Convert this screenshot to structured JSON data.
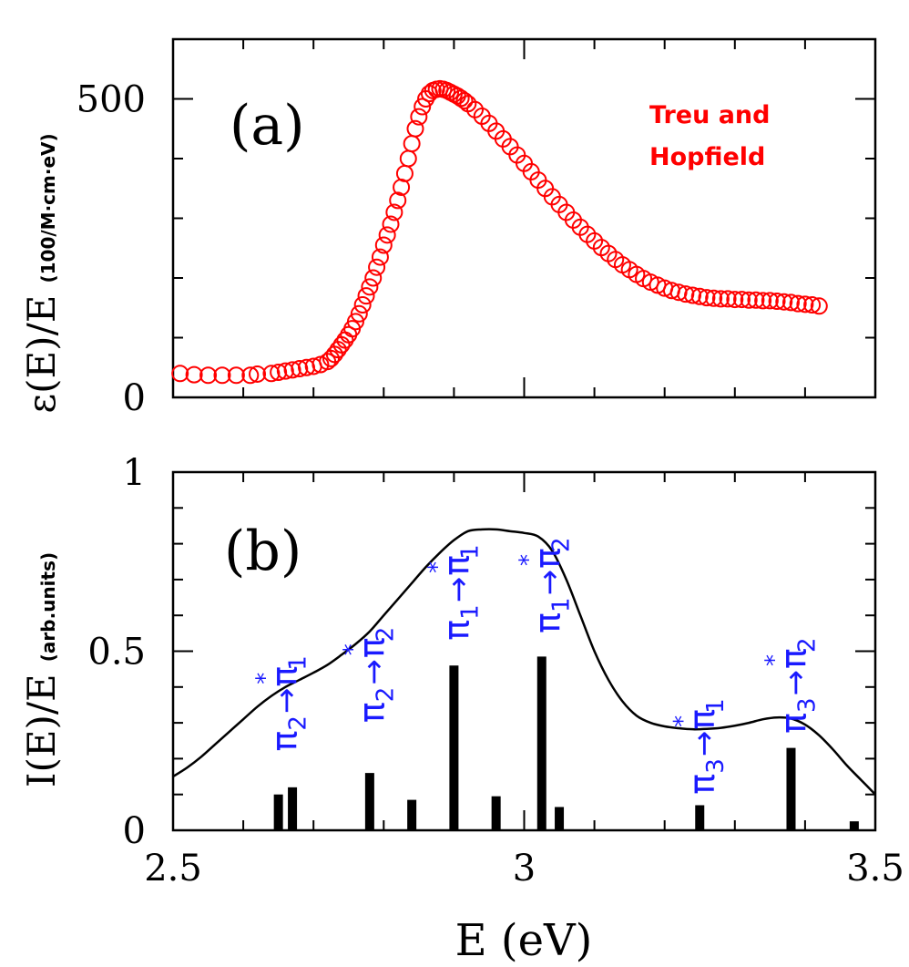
{
  "colors": {
    "axis": "#000000",
    "data_a": "#ff0000",
    "curve_b": "#000000",
    "label_b": "#1a1aff",
    "bars_b": "#000000"
  },
  "xlabel": "E (eV)",
  "chart_data": [
    {
      "type": "scatter",
      "panel": "(a)",
      "ylabel_main": "ε(E)/E",
      "ylabel_unit": "(100/M·cm·eV)",
      "xlim": [
        2.5,
        3.5
      ],
      "ylim": [
        0,
        600
      ],
      "yticks": [
        {
          "v": 0,
          "label": "0"
        },
        {
          "v": 500,
          "label": "500"
        }
      ],
      "legend": [
        "Treu and",
        "Hopfield"
      ],
      "legend_placement": "top-right",
      "series": [
        {
          "name": "Treu and Hopfield",
          "points": [
            [
              2.51,
              40
            ],
            [
              2.53,
              38
            ],
            [
              2.55,
              37
            ],
            [
              2.57,
              37
            ],
            [
              2.59,
              37
            ],
            [
              2.61,
              37
            ],
            [
              2.62,
              39
            ],
            [
              2.64,
              40
            ],
            [
              2.65,
              42
            ],
            [
              2.66,
              44
            ],
            [
              2.67,
              46
            ],
            [
              2.68,
              48
            ],
            [
              2.69,
              50
            ],
            [
              2.7,
              52
            ],
            [
              2.71,
              55
            ],
            [
              2.72,
              60
            ],
            [
              2.725,
              65
            ],
            [
              2.73,
              72
            ],
            [
              2.735,
              80
            ],
            [
              2.74,
              88
            ],
            [
              2.745,
              96
            ],
            [
              2.75,
              105
            ],
            [
              2.755,
              115
            ],
            [
              2.76,
              127
            ],
            [
              2.765,
              140
            ],
            [
              2.77,
              155
            ],
            [
              2.775,
              170
            ],
            [
              2.78,
              185
            ],
            [
              2.785,
              200
            ],
            [
              2.79,
              218
            ],
            [
              2.795,
              235
            ],
            [
              2.8,
              255
            ],
            [
              2.805,
              272
            ],
            [
              2.81,
              290
            ],
            [
              2.815,
              310
            ],
            [
              2.82,
              330
            ],
            [
              2.825,
              352
            ],
            [
              2.83,
              375
            ],
            [
              2.835,
              400
            ],
            [
              2.84,
              425
            ],
            [
              2.845,
              450
            ],
            [
              2.85,
              470
            ],
            [
              2.855,
              487
            ],
            [
              2.86,
              500
            ],
            [
              2.865,
              509
            ],
            [
              2.87,
              514
            ],
            [
              2.875,
              516
            ],
            [
              2.88,
              517
            ],
            [
              2.885,
              516
            ],
            [
              2.89,
              514
            ],
            [
              2.895,
              511
            ],
            [
              2.9,
              508
            ],
            [
              2.905,
              505
            ],
            [
              2.91,
              501
            ],
            [
              2.915,
              497
            ],
            [
              2.92,
              492
            ],
            [
              2.93,
              482
            ],
            [
              2.94,
              471
            ],
            [
              2.95,
              459
            ],
            [
              2.96,
              446
            ],
            [
              2.97,
              433
            ],
            [
              2.98,
              420
            ],
            [
              2.99,
              406
            ],
            [
              3.0,
              392
            ],
            [
              3.01,
              378
            ],
            [
              3.02,
              364
            ],
            [
              3.03,
              350
            ],
            [
              3.04,
              336
            ],
            [
              3.05,
              323
            ],
            [
              3.06,
              310
            ],
            [
              3.07,
              297
            ],
            [
              3.08,
              285
            ],
            [
              3.09,
              273
            ],
            [
              3.1,
              262
            ],
            [
              3.11,
              251
            ],
            [
              3.12,
              241
            ],
            [
              3.13,
              231
            ],
            [
              3.14,
              222
            ],
            [
              3.15,
              214
            ],
            [
              3.16,
              206
            ],
            [
              3.17,
              199
            ],
            [
              3.18,
              193
            ],
            [
              3.19,
              188
            ],
            [
              3.2,
              183
            ],
            [
              3.21,
              179
            ],
            [
              3.22,
              176
            ],
            [
              3.23,
              173
            ],
            [
              3.24,
              171
            ],
            [
              3.25,
              169
            ],
            [
              3.26,
              167
            ],
            [
              3.27,
              166
            ],
            [
              3.28,
              165
            ],
            [
              3.29,
              165
            ],
            [
              3.3,
              164
            ],
            [
              3.31,
              164
            ],
            [
              3.32,
              163
            ],
            [
              3.33,
              163
            ],
            [
              3.34,
              162
            ],
            [
              3.35,
              162
            ],
            [
              3.36,
              161
            ],
            [
              3.37,
              160
            ],
            [
              3.38,
              159
            ],
            [
              3.39,
              157
            ],
            [
              3.4,
              156
            ],
            [
              3.41,
              155
            ],
            [
              3.42,
              153
            ]
          ]
        }
      ]
    },
    {
      "type": "line",
      "panel": "(b)",
      "ylabel_main": "I(E)/E",
      "ylabel_unit": "(arb.units)",
      "xlim": [
        2.5,
        3.5
      ],
      "ylim": [
        0,
        1
      ],
      "xticks": [
        {
          "v": 2.5,
          "label": "2.5"
        },
        {
          "v": 3.0,
          "label": "3"
        },
        {
          "v": 3.5,
          "label": "3.5"
        }
      ],
      "yticks": [
        {
          "v": 0,
          "label": "0"
        },
        {
          "v": 0.5,
          "label": "0.5"
        },
        {
          "v": 1,
          "label": "1"
        }
      ],
      "curve": [
        [
          2.5,
          0.15
        ],
        [
          2.52,
          0.175
        ],
        [
          2.54,
          0.205
        ],
        [
          2.56,
          0.24
        ],
        [
          2.58,
          0.275
        ],
        [
          2.6,
          0.31
        ],
        [
          2.62,
          0.345
        ],
        [
          2.64,
          0.375
        ],
        [
          2.66,
          0.4
        ],
        [
          2.68,
          0.42
        ],
        [
          2.7,
          0.44
        ],
        [
          2.72,
          0.462
        ],
        [
          2.74,
          0.49
        ],
        [
          2.76,
          0.52
        ],
        [
          2.78,
          0.555
        ],
        [
          2.8,
          0.6
        ],
        [
          2.82,
          0.645
        ],
        [
          2.84,
          0.69
        ],
        [
          2.86,
          0.735
        ],
        [
          2.88,
          0.775
        ],
        [
          2.9,
          0.81
        ],
        [
          2.92,
          0.835
        ],
        [
          2.94,
          0.84
        ],
        [
          2.96,
          0.84
        ],
        [
          2.98,
          0.835
        ],
        [
          3.0,
          0.83
        ],
        [
          3.02,
          0.82
        ],
        [
          3.04,
          0.78
        ],
        [
          3.06,
          0.7
        ],
        [
          3.08,
          0.6
        ],
        [
          3.1,
          0.5
        ],
        [
          3.12,
          0.42
        ],
        [
          3.14,
          0.36
        ],
        [
          3.16,
          0.32
        ],
        [
          3.18,
          0.3
        ],
        [
          3.2,
          0.29
        ],
        [
          3.22,
          0.285
        ],
        [
          3.24,
          0.282
        ],
        [
          3.26,
          0.283
        ],
        [
          3.28,
          0.286
        ],
        [
          3.3,
          0.292
        ],
        [
          3.32,
          0.3
        ],
        [
          3.34,
          0.31
        ],
        [
          3.36,
          0.315
        ],
        [
          3.38,
          0.312
        ],
        [
          3.4,
          0.295
        ],
        [
          3.42,
          0.265
        ],
        [
          3.44,
          0.225
        ],
        [
          3.46,
          0.18
        ],
        [
          3.48,
          0.14
        ],
        [
          3.5,
          0.1
        ]
      ],
      "bars": [
        {
          "x": 2.65,
          "y": 0.1
        },
        {
          "x": 2.67,
          "y": 0.12
        },
        {
          "x": 2.78,
          "y": 0.16
        },
        {
          "x": 2.84,
          "y": 0.085
        },
        {
          "x": 2.9,
          "y": 0.46
        },
        {
          "x": 2.96,
          "y": 0.095
        },
        {
          "x": 3.025,
          "y": 0.485
        },
        {
          "x": 3.05,
          "y": 0.065
        },
        {
          "x": 3.25,
          "y": 0.07
        },
        {
          "x": 3.38,
          "y": 0.23
        },
        {
          "x": 3.47,
          "y": 0.025
        }
      ],
      "transitions": [
        {
          "x": 2.66,
          "base": 0.22,
          "from": "π",
          "from_sub": "2",
          "to": "π",
          "to_sub": "1"
        },
        {
          "x": 2.785,
          "base": 0.3,
          "from": "π",
          "from_sub": "2",
          "to": "π",
          "to_sub": "2"
        },
        {
          "x": 2.905,
          "base": 0.53,
          "from": "π",
          "from_sub": "1",
          "to": "π",
          "to_sub": "1"
        },
        {
          "x": 3.035,
          "base": 0.55,
          "from": "π",
          "from_sub": "1",
          "to": "π",
          "to_sub": "2"
        },
        {
          "x": 3.255,
          "base": 0.1,
          "from": "π",
          "from_sub": "3",
          "to": "π",
          "to_sub": "1"
        },
        {
          "x": 3.385,
          "base": 0.27,
          "from": "π",
          "from_sub": "3",
          "to": "π",
          "to_sub": "2"
        }
      ]
    }
  ]
}
